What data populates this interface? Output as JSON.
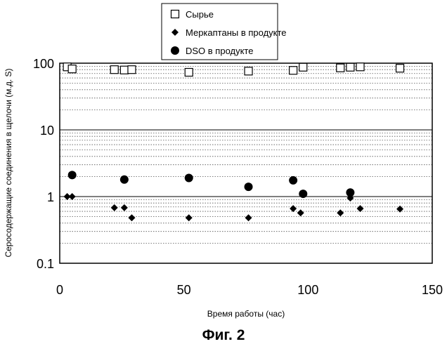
{
  "figure_caption": "Фиг. 2",
  "chart_data": {
    "type": "scatter",
    "title": "",
    "xlabel": "Время работы (час)",
    "ylabel": "Серосодержащие соединения в щелочи (м.д. S)",
    "xlim": [
      0,
      150
    ],
    "ylim": [
      0.1,
      100
    ],
    "yscale": "log",
    "x_ticks": [
      "0",
      "50",
      "100",
      "150"
    ],
    "y_ticks": [
      "0.1",
      "1",
      "10",
      "100"
    ],
    "grid": "horizontal, dotted minor lines",
    "legend_position": "top-center, outside",
    "series": [
      {
        "name": "Сырье",
        "marker": "open-square",
        "color": "#000000",
        "points": [
          {
            "x": 3,
            "y": 88
          },
          {
            "x": 5,
            "y": 82
          },
          {
            "x": 22,
            "y": 80
          },
          {
            "x": 26,
            "y": 79
          },
          {
            "x": 29,
            "y": 80
          },
          {
            "x": 52,
            "y": 73
          },
          {
            "x": 76,
            "y": 76
          },
          {
            "x": 94,
            "y": 78
          },
          {
            "x": 98,
            "y": 87
          },
          {
            "x": 113,
            "y": 85
          },
          {
            "x": 117,
            "y": 87
          },
          {
            "x": 121,
            "y": 88
          },
          {
            "x": 137,
            "y": 84
          }
        ]
      },
      {
        "name": "Меркаптаны в продукте",
        "marker": "filled-diamond",
        "color": "#000000",
        "points": [
          {
            "x": 3,
            "y": 1.0
          },
          {
            "x": 5,
            "y": 1.0
          },
          {
            "x": 22,
            "y": 0.68
          },
          {
            "x": 26,
            "y": 0.68
          },
          {
            "x": 29,
            "y": 0.48
          },
          {
            "x": 52,
            "y": 0.48
          },
          {
            "x": 76,
            "y": 0.48
          },
          {
            "x": 94,
            "y": 0.66
          },
          {
            "x": 97,
            "y": 0.57
          },
          {
            "x": 113,
            "y": 0.57
          },
          {
            "x": 117,
            "y": 0.95
          },
          {
            "x": 121,
            "y": 0.66
          },
          {
            "x": 137,
            "y": 0.65
          }
        ]
      },
      {
        "name": "DSO в продукте",
        "marker": "filled-circle",
        "color": "#000000",
        "points": [
          {
            "x": 5,
            "y": 2.1
          },
          {
            "x": 26,
            "y": 1.8
          },
          {
            "x": 52,
            "y": 1.9
          },
          {
            "x": 76,
            "y": 1.4
          },
          {
            "x": 94,
            "y": 1.75
          },
          {
            "x": 98,
            "y": 1.1
          },
          {
            "x": 117,
            "y": 1.15
          }
        ]
      }
    ]
  }
}
